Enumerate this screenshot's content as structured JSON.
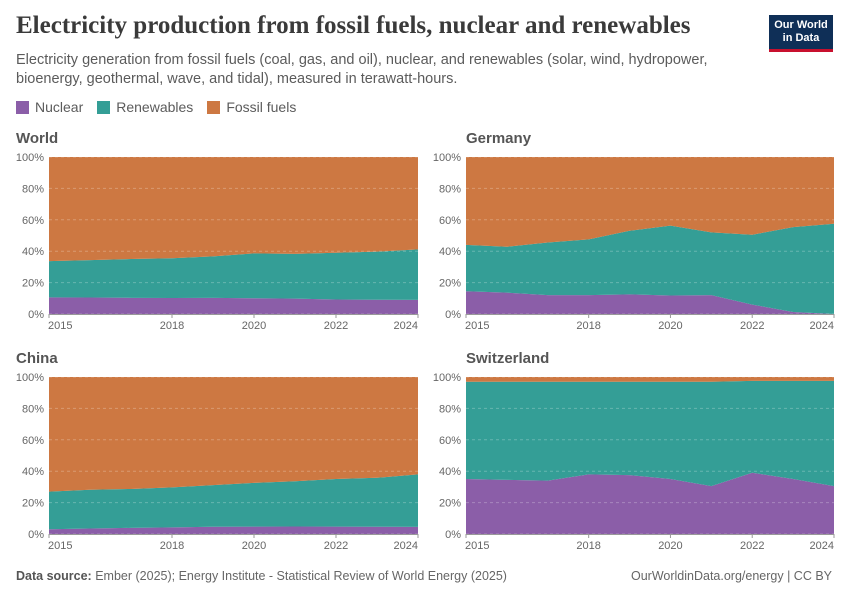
{
  "header": {
    "title": "Electricity production from fossil fuels, nuclear and renewables",
    "subtitle": "Electricity generation from fossil fuels (coal, gas, and oil), nuclear, and renewables (solar, wind, hydropower, bioenergy, geothermal, wave, and tidal), measured in terawatt-hours.",
    "logo_line1": "Our World",
    "logo_line2": "in Data"
  },
  "legend": [
    {
      "label": "Nuclear",
      "color": "#8b5ea8"
    },
    {
      "label": "Renewables",
      "color": "#349e96"
    },
    {
      "label": "Fossil fuels",
      "color": "#cd7842"
    }
  ],
  "footer": {
    "source_label": "Data source:",
    "source_text": "Ember (2025); Energy Institute - Statistical Review of World Energy (2025)",
    "credit": "OurWorldinData.org/energy | CC BY"
  },
  "chart_data": [
    {
      "type": "area",
      "title": "World",
      "x": [
        2015,
        2016,
        2017,
        2018,
        2019,
        2020,
        2021,
        2022,
        2023,
        2024
      ],
      "xticks": [
        2015,
        2018,
        2020,
        2022,
        2024
      ],
      "yticks": [
        "0%",
        "20%",
        "40%",
        "60%",
        "80%",
        "100%"
      ],
      "ylim": [
        0,
        100
      ],
      "stacked": true,
      "series": [
        {
          "name": "Nuclear",
          "values": [
            10.6,
            10.5,
            10.3,
            10.2,
            10.3,
            10.0,
            9.8,
            9.2,
            9.1,
            9.0
          ]
        },
        {
          "name": "Renewables",
          "values": [
            23.1,
            23.8,
            24.7,
            25.3,
            26.4,
            28.6,
            28.5,
            29.8,
            30.6,
            32.2
          ]
        },
        {
          "name": "Fossil fuels",
          "values": [
            66.3,
            65.7,
            65.0,
            64.5,
            63.3,
            61.4,
            61.7,
            61.0,
            60.3,
            58.8
          ]
        }
      ]
    },
    {
      "type": "area",
      "title": "Germany",
      "x": [
        2015,
        2016,
        2017,
        2018,
        2019,
        2020,
        2021,
        2022,
        2023,
        2024
      ],
      "xticks": [
        2015,
        2018,
        2020,
        2022,
        2024
      ],
      "yticks": [
        "0%",
        "20%",
        "40%",
        "60%",
        "80%",
        "100%"
      ],
      "ylim": [
        0,
        100
      ],
      "stacked": true,
      "series": [
        {
          "name": "Nuclear",
          "values": [
            14.5,
            13.6,
            12.0,
            12.0,
            12.5,
            11.8,
            12.0,
            6.0,
            1.3,
            0
          ]
        },
        {
          "name": "Renewables",
          "values": [
            29.5,
            29.2,
            33.5,
            35.5,
            40.5,
            44.5,
            40.0,
            44.5,
            54.0,
            57.5
          ]
        },
        {
          "name": "Fossil fuels",
          "values": [
            56.0,
            57.2,
            54.5,
            52.5,
            47.0,
            43.7,
            48.0,
            49.5,
            44.7,
            42.5
          ]
        }
      ]
    },
    {
      "type": "area",
      "title": "China",
      "x": [
        2015,
        2016,
        2017,
        2018,
        2019,
        2020,
        2021,
        2022,
        2023,
        2024
      ],
      "xticks": [
        2015,
        2018,
        2020,
        2022,
        2024
      ],
      "yticks": [
        "0%",
        "20%",
        "40%",
        "60%",
        "80%",
        "100%"
      ],
      "ylim": [
        0,
        100
      ],
      "stacked": true,
      "series": [
        {
          "name": "Nuclear",
          "values": [
            3.0,
            3.5,
            3.9,
            4.2,
            4.6,
            4.7,
            4.8,
            4.7,
            4.6,
            4.5
          ]
        },
        {
          "name": "Renewables",
          "values": [
            24.0,
            24.7,
            24.8,
            25.5,
            26.5,
            27.9,
            28.8,
            30.3,
            31.2,
            33.5
          ]
        },
        {
          "name": "Fossil fuels",
          "values": [
            73.0,
            71.8,
            71.3,
            70.3,
            68.9,
            67.4,
            66.4,
            65.0,
            64.2,
            62.0
          ]
        }
      ]
    },
    {
      "type": "area",
      "title": "Switzerland",
      "x": [
        2015,
        2016,
        2017,
        2018,
        2019,
        2020,
        2021,
        2022,
        2023,
        2024
      ],
      "xticks": [
        2015,
        2018,
        2020,
        2022,
        2024
      ],
      "yticks": [
        "0%",
        "20%",
        "40%",
        "60%",
        "80%",
        "100%"
      ],
      "ylim": [
        0,
        100
      ],
      "stacked": true,
      "series": [
        {
          "name": "Nuclear",
          "values": [
            35.0,
            34.5,
            34.0,
            38.0,
            37.5,
            35.0,
            30.5,
            39.0,
            35.0,
            30.5
          ]
        },
        {
          "name": "Renewables",
          "values": [
            62.0,
            62.5,
            63.0,
            59.0,
            59.5,
            62.0,
            66.5,
            58.5,
            62.5,
            67.0
          ]
        },
        {
          "name": "Fossil fuels",
          "values": [
            3.0,
            3.0,
            3.0,
            3.0,
            3.0,
            3.0,
            3.0,
            2.5,
            2.5,
            2.5
          ]
        }
      ]
    }
  ]
}
